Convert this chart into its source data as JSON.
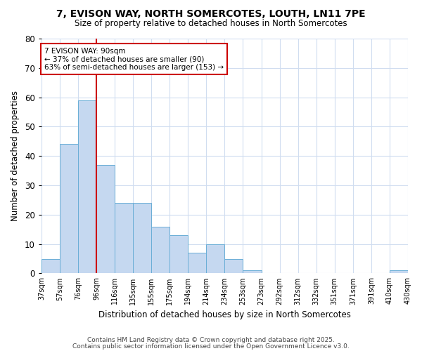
{
  "title1": "7, EVISON WAY, NORTH SOMERCOTES, LOUTH, LN11 7PE",
  "title2": "Size of property relative to detached houses in North Somercotes",
  "xlabel": "Distribution of detached houses by size in North Somercotes",
  "ylabel": "Number of detached properties",
  "bar_values": [
    5,
    44,
    59,
    37,
    24,
    24,
    16,
    13,
    7,
    10,
    5,
    1,
    0,
    0,
    0,
    0,
    0,
    0,
    0,
    1
  ],
  "categories": [
    "37sqm",
    "57sqm",
    "76sqm",
    "96sqm",
    "116sqm",
    "135sqm",
    "155sqm",
    "175sqm",
    "194sqm",
    "214sqm",
    "234sqm",
    "253sqm",
    "273sqm",
    "292sqm",
    "312sqm",
    "332sqm",
    "351sqm",
    "371sqm",
    "391sqm",
    "410sqm",
    "430sqm"
  ],
  "bar_color": "#c5d8f0",
  "bar_edge_color": "#6aaed6",
  "vline_x": 3,
  "vline_color": "#cc0000",
  "annotation_text": "7 EVISON WAY: 90sqm\n← 37% of detached houses are smaller (90)\n63% of semi-detached houses are larger (153) →",
  "annotation_box_color": "#ffffff",
  "annotation_box_edge": "#cc0000",
  "ylim": [
    0,
    80
  ],
  "yticks": [
    0,
    10,
    20,
    30,
    40,
    50,
    60,
    70,
    80
  ],
  "plot_bg_color": "#ffffff",
  "fig_bg_color": "#ffffff",
  "grid_color": "#d0ddf0",
  "footer1": "Contains HM Land Registry data © Crown copyright and database right 2025.",
  "footer2": "Contains public sector information licensed under the Open Government Licence v3.0."
}
